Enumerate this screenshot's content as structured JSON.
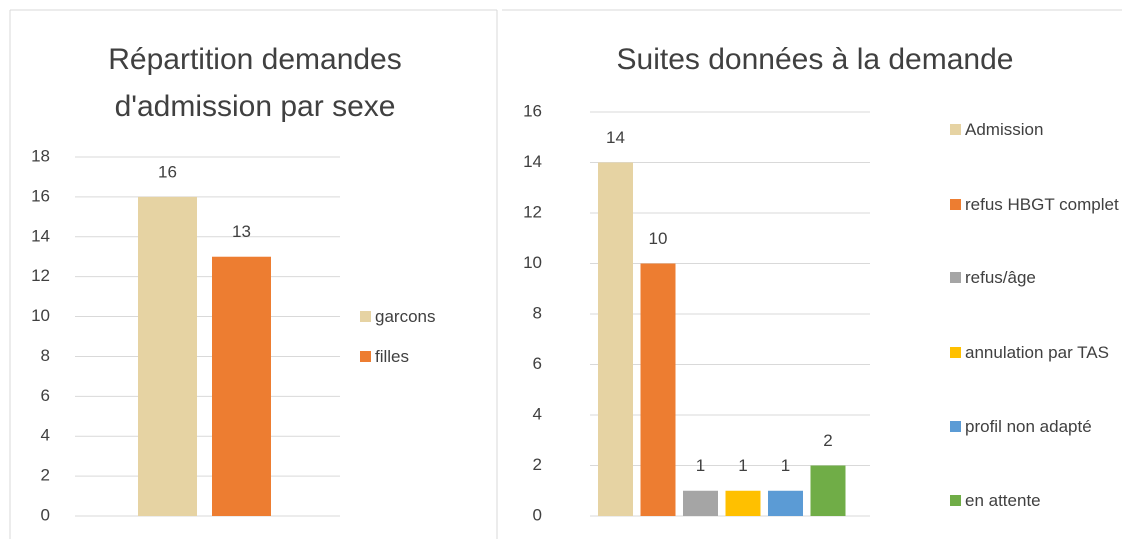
{
  "chart_data": [
    {
      "type": "bar",
      "title": "Répartition demandes d'admission par sexe",
      "series": [
        {
          "name": "garcons",
          "color": "#e6d3a3",
          "values": [
            16
          ]
        },
        {
          "name": "filles",
          "color": "#ed7d31",
          "values": [
            13
          ]
        }
      ],
      "ylim": [
        0,
        18
      ],
      "yticks": [
        0,
        2,
        4,
        6,
        8,
        10,
        12,
        14,
        16,
        18
      ],
      "grid": true,
      "legend": "right"
    },
    {
      "type": "bar",
      "title": "Suites données à la demande",
      "series": [
        {
          "name": "Admission",
          "color": "#e6d3a3",
          "values": [
            14
          ]
        },
        {
          "name": "refus HBGT complet",
          "color": "#ed7d31",
          "values": [
            10
          ]
        },
        {
          "name": "refus/âge",
          "color": "#a5a5a5",
          "values": [
            1
          ]
        },
        {
          "name": "annulation par TAS",
          "color": "#ffc000",
          "values": [
            1
          ]
        },
        {
          "name": "profil non adapté",
          "color": "#5b9bd5",
          "values": [
            1
          ]
        },
        {
          "name": "en attente",
          "color": "#70ad47",
          "values": [
            2
          ]
        }
      ],
      "ylim": [
        0,
        16
      ],
      "yticks": [
        0,
        2,
        4,
        6,
        8,
        10,
        12,
        14,
        16
      ],
      "grid": true,
      "legend": "right"
    }
  ]
}
